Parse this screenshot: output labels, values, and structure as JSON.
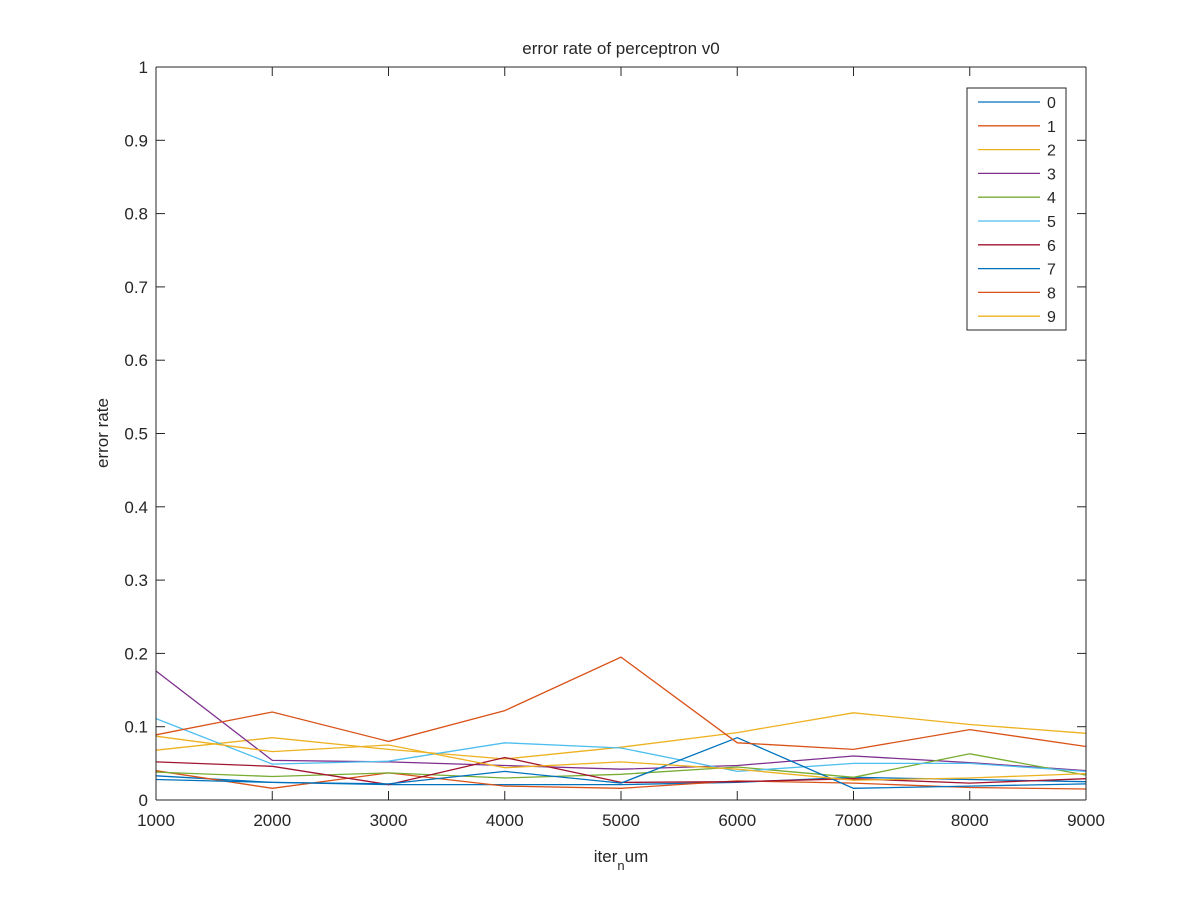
{
  "chart_data": {
    "type": "line",
    "title": "error rate of perceptron v0",
    "xlabel": {
      "main": "iter",
      "sub": "n",
      "tail": "um"
    },
    "ylabel": "error rate",
    "xlim": [
      1000,
      9000
    ],
    "ylim": [
      0,
      1
    ],
    "x_ticks": [
      "1000",
      "2000",
      "3000",
      "4000",
      "5000",
      "6000",
      "7000",
      "8000",
      "9000"
    ],
    "y_ticks": [
      "0",
      "0.1",
      "0.2",
      "0.3",
      "0.4",
      "0.5",
      "0.6",
      "0.7",
      "0.8",
      "0.9",
      "1"
    ],
    "grid": false,
    "legend_position": "top-right",
    "x": [
      1000,
      2000,
      3000,
      4000,
      5000,
      6000,
      7000,
      8000,
      9000
    ],
    "series": [
      {
        "name": "0",
        "color": "#0072BD",
        "values": [
          0.033,
          0.024,
          0.021,
          0.021,
          0.021,
          0.024,
          0.031,
          0.028,
          0.025
        ]
      },
      {
        "name": "1",
        "color": "#D95319",
        "values": [
          0.04,
          0.016,
          0.037,
          0.019,
          0.016,
          0.026,
          0.023,
          0.017,
          0.015
        ]
      },
      {
        "name": "2",
        "color": "#EDB120",
        "values": [
          0.068,
          0.085,
          0.069,
          0.056,
          0.072,
          0.092,
          0.119,
          0.103,
          0.091
        ]
      },
      {
        "name": "3",
        "color": "#7E2F8E",
        "values": [
          0.176,
          0.054,
          0.052,
          0.047,
          0.042,
          0.047,
          0.06,
          0.051,
          0.04
        ]
      },
      {
        "name": "4",
        "color": "#77AC30",
        "values": [
          0.038,
          0.032,
          0.037,
          0.03,
          0.035,
          0.045,
          0.031,
          0.063,
          0.034
        ]
      },
      {
        "name": "5",
        "color": "#4DBEEE",
        "values": [
          0.111,
          0.049,
          0.053,
          0.078,
          0.071,
          0.039,
          0.05,
          0.05,
          0.039
        ]
      },
      {
        "name": "6",
        "color": "#A2142F",
        "values": [
          0.052,
          0.046,
          0.021,
          0.058,
          0.024,
          0.025,
          0.029,
          0.023,
          0.029
        ]
      },
      {
        "name": "7",
        "color": "#0072BD",
        "values": [
          0.028,
          0.024,
          0.022,
          0.039,
          0.023,
          0.085,
          0.016,
          0.019,
          0.022
        ]
      },
      {
        "name": "8",
        "color": "#D95319",
        "values": [
          0.089,
          0.12,
          0.08,
          0.122,
          0.195,
          0.078,
          0.069,
          0.096,
          0.073
        ]
      },
      {
        "name": "9",
        "color": "#EDB120",
        "values": [
          0.087,
          0.066,
          0.075,
          0.044,
          0.052,
          0.042,
          0.027,
          0.03,
          0.036
        ]
      }
    ]
  }
}
